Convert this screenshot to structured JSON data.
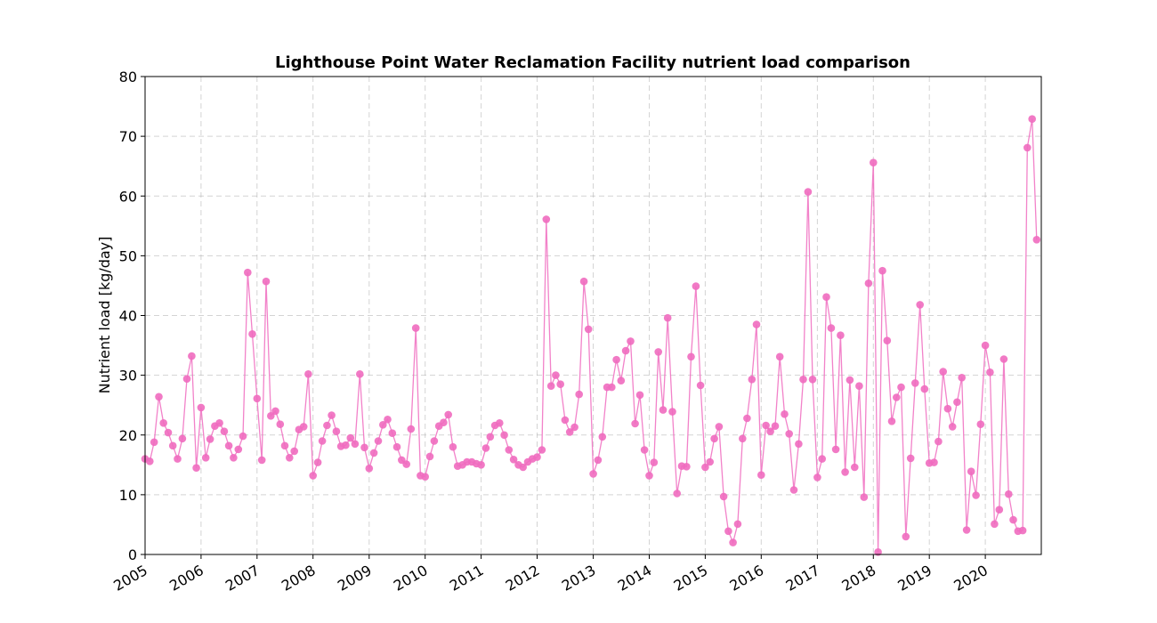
{
  "chart_data": {
    "type": "line",
    "title": "Lighthouse Point Water Reclamation Facility nutrient load comparison",
    "xlabel": "",
    "ylabel": "Nutrient load [kg/day]",
    "xlim": [
      "2005-01-01",
      "2020-12-31"
    ],
    "ylim": [
      0,
      80
    ],
    "y_ticks": [
      0,
      10,
      20,
      30,
      40,
      50,
      60,
      70,
      80
    ],
    "x_ticks": [
      "2005",
      "2006",
      "2007",
      "2008",
      "2009",
      "2010",
      "2011",
      "2012",
      "2013",
      "2014",
      "2015",
      "2016",
      "2017",
      "2018",
      "2019",
      "2020"
    ],
    "grid": true,
    "color": "#f06cbf",
    "series": [
      {
        "x": [
          "2005-01",
          "2005-02",
          "2005-03",
          "2005-04",
          "2005-05",
          "2005-06",
          "2005-07",
          "2005-08",
          "2005-09",
          "2005-10",
          "2005-11",
          "2005-12",
          "2006-01",
          "2006-02",
          "2006-03",
          "2006-04",
          "2006-05",
          "2006-06",
          "2006-07",
          "2006-08",
          "2006-09",
          "2006-10",
          "2006-11",
          "2006-12",
          "2007-01",
          "2007-02",
          "2007-03",
          "2007-04",
          "2007-05",
          "2007-06",
          "2007-07",
          "2007-08",
          "2007-09",
          "2007-10",
          "2007-11",
          "2007-12",
          "2008-01",
          "2008-02",
          "2008-03",
          "2008-04",
          "2008-05",
          "2008-06",
          "2008-07",
          "2008-08",
          "2008-09",
          "2008-10",
          "2008-11",
          "2008-12",
          "2009-01",
          "2009-02",
          "2009-03",
          "2009-04",
          "2009-05",
          "2009-06",
          "2009-07",
          "2009-08",
          "2009-09",
          "2009-10",
          "2009-11",
          "2009-12",
          "2010-01",
          "2010-02",
          "2010-03",
          "2010-04",
          "2010-05",
          "2010-06",
          "2010-07",
          "2010-08",
          "2010-09",
          "2010-10",
          "2010-11",
          "2010-12",
          "2011-01",
          "2011-02",
          "2011-03",
          "2011-04",
          "2011-05",
          "2011-06",
          "2011-07",
          "2011-08",
          "2011-09",
          "2011-10",
          "2011-11",
          "2011-12",
          "2012-01",
          "2012-02",
          "2012-03",
          "2012-04",
          "2012-05",
          "2012-06",
          "2012-07",
          "2012-08",
          "2012-09",
          "2012-10",
          "2012-11",
          "2012-12",
          "2013-01",
          "2013-02",
          "2013-03",
          "2013-04",
          "2013-05",
          "2013-06",
          "2013-07",
          "2013-08",
          "2013-09",
          "2013-10",
          "2013-11",
          "2013-12",
          "2014-01",
          "2014-02",
          "2014-03",
          "2014-04",
          "2014-05",
          "2014-06",
          "2014-07",
          "2014-08",
          "2014-09",
          "2014-10",
          "2014-11",
          "2014-12",
          "2015-01",
          "2015-02",
          "2015-03",
          "2015-04",
          "2015-05",
          "2015-06",
          "2015-07",
          "2015-08",
          "2015-09",
          "2015-10",
          "2015-11",
          "2015-12",
          "2016-01",
          "2016-02",
          "2016-03",
          "2016-04",
          "2016-05",
          "2016-06",
          "2016-07",
          "2016-08",
          "2016-09",
          "2016-10",
          "2016-11",
          "2016-12",
          "2017-01",
          "2017-02",
          "2017-03",
          "2017-04",
          "2017-05",
          "2017-06",
          "2017-07",
          "2017-08",
          "2017-09",
          "2017-10",
          "2017-11",
          "2017-12",
          "2018-01",
          "2018-02",
          "2018-03",
          "2018-04",
          "2018-05",
          "2018-06",
          "2018-07",
          "2018-08",
          "2018-09",
          "2018-10",
          "2018-11",
          "2018-12",
          "2019-01",
          "2019-02",
          "2019-03",
          "2019-04",
          "2019-05",
          "2019-06",
          "2019-07",
          "2019-08",
          "2019-09",
          "2019-10",
          "2019-11",
          "2019-12",
          "2020-01",
          "2020-02",
          "2020-03",
          "2020-04",
          "2020-05",
          "2020-06",
          "2020-07",
          "2020-08",
          "2020-09",
          "2020-10",
          "2020-11",
          "2020-12"
        ],
        "y": [
          16.0,
          15.6,
          18.8,
          26.4,
          22.0,
          20.4,
          18.2,
          16.0,
          19.4,
          29.4,
          33.2,
          14.5,
          24.6,
          16.2,
          19.3,
          21.5,
          22.0,
          20.6,
          18.2,
          16.2,
          17.6,
          19.8,
          47.2,
          36.9,
          26.1,
          15.8,
          45.7,
          23.2,
          24.0,
          21.8,
          18.2,
          16.2,
          17.3,
          20.9,
          21.4,
          30.2,
          13.2,
          15.4,
          19.0,
          21.6,
          23.3,
          20.6,
          18.1,
          18.3,
          19.5,
          18.5,
          30.2,
          17.9,
          14.4,
          17.0,
          19.0,
          21.7,
          22.6,
          20.3,
          18.0,
          15.8,
          15.1,
          21.0,
          37.9,
          13.2,
          13.0,
          16.4,
          19.0,
          21.5,
          22.1,
          23.4,
          18.0,
          14.8,
          15.0,
          15.5,
          15.5,
          15.2,
          15.0,
          17.8,
          19.7,
          21.6,
          22.0,
          20.0,
          17.5,
          15.9,
          15.0,
          14.6,
          15.5,
          16.0,
          16.3,
          17.5,
          56.1,
          28.2,
          30.0,
          28.5,
          22.5,
          20.5,
          21.3,
          26.8,
          45.7,
          37.7,
          13.5,
          15.8,
          19.7,
          28.0,
          28.0,
          32.6,
          29.1,
          34.1,
          35.7,
          21.9,
          26.7,
          17.5,
          13.2,
          15.4,
          33.9,
          24.2,
          39.6,
          23.9,
          10.2,
          14.8,
          14.7,
          33.1,
          44.9,
          28.3,
          14.6,
          15.5,
          19.4,
          21.4,
          9.7,
          3.9,
          2.0,
          5.1,
          19.4,
          22.8,
          29.3,
          38.5,
          13.3,
          21.6,
          20.6,
          21.5,
          33.1,
          23.5,
          20.2,
          10.8,
          18.5,
          29.3,
          60.7,
          29.3,
          12.9,
          16.0,
          43.1,
          37.9,
          17.6,
          36.7,
          13.8,
          29.2,
          14.6,
          28.2,
          9.6,
          45.4,
          65.6,
          0.4,
          47.5,
          35.8,
          22.3,
          26.3,
          28.0,
          3.0,
          16.1,
          28.7,
          41.8,
          27.7,
          15.3,
          15.4,
          18.9,
          30.6,
          24.4,
          21.4,
          25.5,
          29.6,
          4.1,
          13.9,
          9.9,
          21.8,
          35.0,
          30.5,
          5.1,
          7.5,
          32.7,
          10.1,
          5.8,
          3.9,
          4.0,
          68.1,
          72.9,
          52.7
        ]
      }
    ]
  }
}
